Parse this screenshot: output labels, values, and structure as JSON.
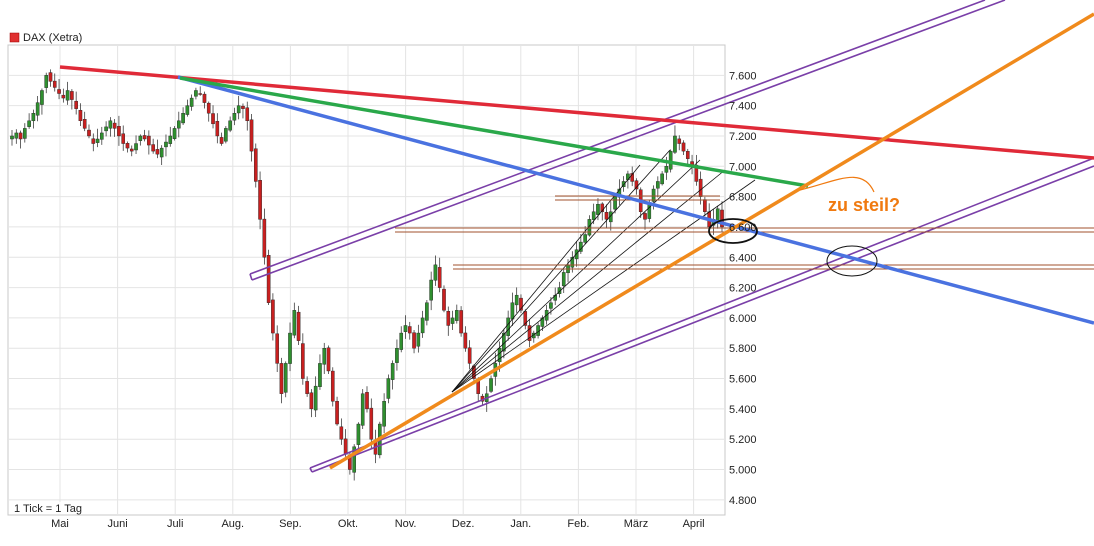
{
  "chart_data": {
    "type": "candlestick",
    "legend": {
      "label": "DAX (Xetra)",
      "color": "#e03030",
      "placement": "top-left"
    },
    "footer_note": "1 Tick = 1 Tag",
    "y_axis": {
      "range": [
        4700,
        7800
      ],
      "ticks": [
        "7.600",
        "7.400",
        "7.200",
        "7.000",
        "6.800",
        "6.600",
        "6.400",
        "6.200",
        "6.000",
        "5.800",
        "5.600",
        "5.400",
        "5.200",
        "5.000",
        "4.800"
      ],
      "tick_values": [
        7600,
        7400,
        7200,
        7000,
        6800,
        6600,
        6400,
        6200,
        6000,
        5800,
        5600,
        5400,
        5200,
        5000,
        4800
      ]
    },
    "x_axis": {
      "months": [
        "Mai",
        "Juni",
        "Juli",
        "Aug.",
        "Sep.",
        "Okt.",
        "Nov.",
        "Dez.",
        "Jan.",
        "Feb.",
        "März",
        "April"
      ]
    },
    "grid": true,
    "series_color": {
      "up": "#2f8f2f",
      "down": "#c82020"
    },
    "closes": [
      7200,
      7220,
      7180,
      7250,
      7300,
      7350,
      7420,
      7500,
      7600,
      7560,
      7520,
      7480,
      7450,
      7500,
      7440,
      7380,
      7300,
      7250,
      7200,
      7150,
      7180,
      7220,
      7260,
      7300,
      7250,
      7200,
      7150,
      7120,
      7100,
      7150,
      7200,
      7180,
      7140,
      7100,
      7080,
      7120,
      7160,
      7200,
      7250,
      7300,
      7350,
      7400,
      7450,
      7500,
      7480,
      7420,
      7350,
      7280,
      7200,
      7150,
      7250,
      7300,
      7350,
      7400,
      7380,
      7300,
      7100,
      6900,
      6650,
      6400,
      6100,
      5900,
      5700,
      5500,
      5700,
      5900,
      6050,
      5850,
      5600,
      5500,
      5400,
      5550,
      5700,
      5800,
      5650,
      5450,
      5300,
      5200,
      5100,
      5000,
      5150,
      5300,
      5500,
      5400,
      5200,
      5100,
      5300,
      5450,
      5600,
      5700,
      5800,
      5900,
      5950,
      5900,
      5800,
      5900,
      6000,
      6100,
      6250,
      6350,
      6200,
      6050,
      5950,
      6000,
      6050,
      5900,
      5800,
      5700,
      5600,
      5500,
      5450,
      5500,
      5600,
      5700,
      5800,
      5900,
      6000,
      6100,
      6150,
      6050,
      5950,
      5850,
      5900,
      5950,
      6000,
      6050,
      6100,
      6150,
      6200,
      6300,
      6350,
      6400,
      6450,
      6500,
      6550,
      6650,
      6700,
      6750,
      6700,
      6650,
      6700,
      6800,
      6850,
      6900,
      6950,
      6900,
      6850,
      6700,
      6650,
      6750,
      6850,
      6900,
      6950,
      7000,
      7100,
      7200,
      7150,
      7100,
      7050,
      7000,
      6900,
      6800,
      6700,
      6600,
      6650,
      6720,
      6600
    ],
    "trendlines": [
      {
        "name": "red",
        "color": "#e02a38",
        "from": [
          "Mai",
          7600
        ],
        "to": [
          "right-edge",
          6850
        ]
      },
      {
        "name": "green",
        "color": "#2aa84a",
        "from": [
          "Juli",
          7520
        ],
        "to": [
          "April",
          6700
        ]
      },
      {
        "name": "blue",
        "color": "#4a72e0",
        "from": [
          "Juli",
          7500
        ],
        "to": [
          "right-edge",
          5800
        ]
      },
      {
        "name": "orange",
        "color": "#f08a1c",
        "from": [
          "Sep.",
          4970
        ],
        "to": [
          "right-edge",
          7980
        ]
      }
    ],
    "annotations": [
      {
        "text": "zu steil?",
        "color": "#f07a10"
      }
    ]
  }
}
